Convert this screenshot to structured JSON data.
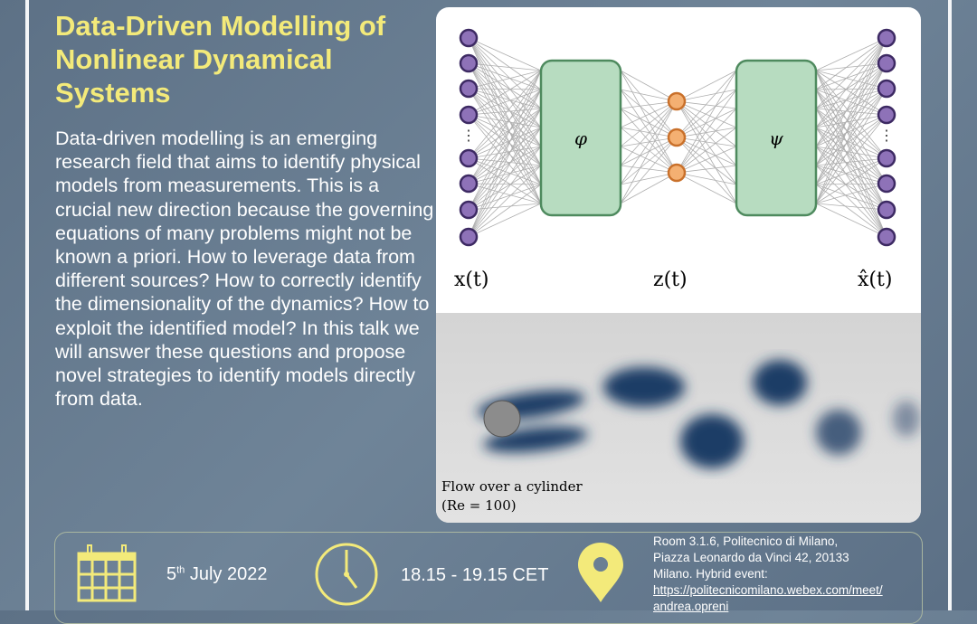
{
  "title": "Data-Driven Modelling of Nonlinear Dynamical Systems",
  "abstract": "Data-driven modelling is an emerging research field that aims to identify physical models from measurements. This is a crucial new direction because the governing equations of many problems might not be known a priori. How to leverage data from different sources? How to correctly identify the dimensionality of the dynamics? How to exploit the identified model? In this talk we will answer these questions and propose novel strategies to identify models directly from data.",
  "figure": {
    "encoder_label": "φ",
    "decoder_label": "ψ",
    "input_label": "x(t)",
    "latent_label": "z(t)",
    "output_label": "x̂(t)",
    "flow_caption": "Flow over a cylinder",
    "flow_re": "(Re = 100)",
    "colors": {
      "node": "#8e72b8",
      "latent": "#f4b072",
      "box": "#b7dcc0"
    }
  },
  "event": {
    "date_day": "5",
    "date_sup": "th",
    "date_rest": " July 2022",
    "time": "18.15 - 19.15 CET",
    "address_line1": "Room 3.1.6, Politecnico di Milano,",
    "address_line2": "Piazza Leonardo da Vinci 42, 20133",
    "address_line3": "Milano. Hybrid event:",
    "link_line1": "https://politecnicomilano.webex.com/meet/",
    "link_line2": "andrea.opreni",
    "icon_color": "#f3ea7a"
  }
}
